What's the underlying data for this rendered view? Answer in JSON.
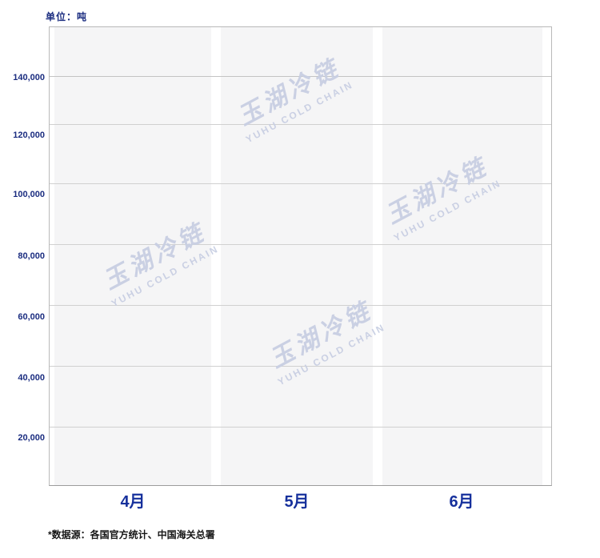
{
  "unit_label": "单位：吨",
  "footer_note": "*数据源：各国官方统计、中国海关总署",
  "watermark": {
    "cn": "玉湖冷链",
    "en": "YUHU COLD CHAIN"
  },
  "y_axis": {
    "labels": [
      "140,000",
      "120,000",
      "100,000",
      "80,000",
      "60,000",
      "40,000",
      "20,000"
    ]
  },
  "x_axis": {
    "labels": [
      "4月",
      "5月",
      "6月"
    ]
  },
  "colors": {
    "navy_text": "#1b2d80",
    "month_label": "#16309c",
    "gridline": "#d0d0d0",
    "category_band": "#f5f5f6",
    "watermark": "#c8cfe3",
    "plot_border": "#b9b9b9",
    "footer_text": "#161616"
  },
  "chart_data": {
    "type": "bar",
    "title": "",
    "xlabel": "",
    "ylabel": "单位：吨",
    "categories": [
      "4月",
      "5月",
      "6月"
    ],
    "series": [],
    "values": [],
    "yticks": [
      140000,
      120000,
      100000,
      80000,
      60000,
      40000,
      20000
    ],
    "ytick_labels": [
      "140,000",
      "120,000",
      "100,000",
      "80,000",
      "60,000",
      "40,000",
      "20,000"
    ],
    "ylim": [
      0,
      155000
    ],
    "grid": true,
    "legend_position": "none",
    "note": "empty plot area with three light-gray category background bands; no data bars rendered"
  }
}
